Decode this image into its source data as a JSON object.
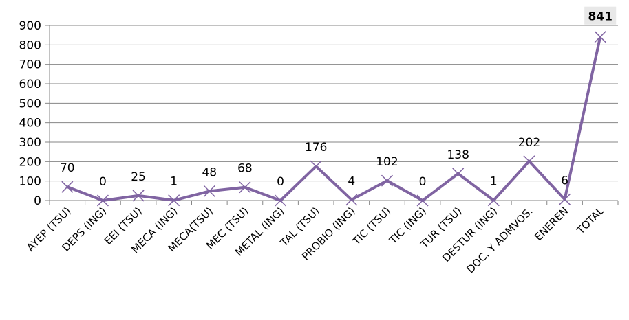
{
  "chart_data": {
    "type": "line",
    "categories": [
      "AYEP (TSU)",
      "DEPS (ING)",
      "EEI (TSU)",
      "MECA (ING)",
      "MECA(TSU)",
      "MEC (TSU)",
      "METAL (ING)",
      "TAL (TSU)",
      "PROBIO (ING)",
      "TIC (TSU)",
      "TIC (ING)",
      "TUR (TSU)",
      "DESTUR (ING)",
      "DOC. Y ADMVOS.",
      "ENEREN",
      "TOTAL"
    ],
    "values": [
      70,
      0,
      25,
      1,
      48,
      68,
      0,
      176,
      4,
      102,
      0,
      138,
      1,
      202,
      6,
      841
    ],
    "data_labels": [
      "70",
      "0",
      "25",
      "1",
      "48",
      "68",
      "0",
      "176",
      "4",
      "102",
      "0",
      "138",
      "1",
      "202",
      "6",
      "841"
    ],
    "y_ticks": [
      "0",
      "100",
      "200",
      "300",
      "400",
      "500",
      "600",
      "700",
      "800",
      "900"
    ],
    "ylim": [
      0,
      900
    ],
    "grid": true,
    "legend": "none",
    "colors": {
      "line": "#8064A2",
      "marker": "#8064A2",
      "grid": "#868686",
      "axis": "#868686"
    }
  }
}
